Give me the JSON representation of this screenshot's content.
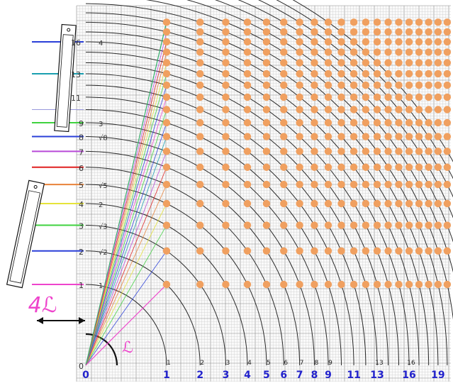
{
  "colors": {
    "grid_minor": "#c8c8c8",
    "grid_major": "#8a8a8a",
    "arc": "#2a2a2a",
    "dot": "#f0a060",
    "axis_label": "#2222cc",
    "magenta": "#ee44cc",
    "blue_line": "#2a3fd8",
    "red_line": "#e02020",
    "orange_line": "#e8833a",
    "yellow_line": "#e6e43a",
    "green_line": "#3fd23f",
    "violet_line": "#b84ad8",
    "teal_line": "#1a9fb0"
  },
  "bottom_axis": {
    "labels": [
      "0",
      "1",
      "2",
      "3",
      "4",
      "5",
      "6",
      "7",
      "8",
      "9",
      "11",
      "13",
      "16",
      "19"
    ],
    "values": [
      0,
      1,
      2,
      3,
      4,
      5,
      6,
      7,
      8,
      9,
      11,
      13,
      16,
      19
    ]
  },
  "top_small_labels": [
    {
      "text": "1",
      "value": 1
    },
    {
      "text": "2",
      "value": 2
    },
    {
      "text": "3",
      "value": 3
    },
    {
      "text": "4",
      "value": 4
    },
    {
      "text": "5",
      "value": 5
    },
    {
      "text": "6",
      "value": 6
    },
    {
      "text": "7",
      "value": 7
    },
    {
      "text": "8",
      "value": 8
    },
    {
      "text": "9",
      "value": 9
    },
    {
      "text": "13",
      "value": 13
    },
    {
      "text": "16",
      "value": 16
    }
  ],
  "left_axis": {
    "labels": [
      {
        "text": "0",
        "value": 0,
        "line": "none"
      },
      {
        "text": "1",
        "value": 1,
        "line": "magenta",
        "side": "1"
      },
      {
        "text": "2",
        "value": 2,
        "line": "blue_line",
        "side": "√2"
      },
      {
        "text": "3",
        "value": 3,
        "line": "green_line",
        "side": "√3"
      },
      {
        "text": "4",
        "value": 4,
        "line": "yellow_line",
        "side": "2"
      },
      {
        "text": "5",
        "value": 5,
        "line": "orange_line",
        "side": "√5"
      },
      {
        "text": "6",
        "value": 6,
        "line": "red_line",
        "side": ""
      },
      {
        "text": "7",
        "value": 7,
        "line": "violet_line",
        "side": ""
      },
      {
        "text": "8",
        "value": 8,
        "line": "blue_line",
        "side": "√8"
      },
      {
        "text": "9",
        "value": 9,
        "line": "green_line",
        "side": "3"
      },
      {
        "text": "11",
        "value": 11,
        "line": "none",
        "side": ""
      },
      {
        "text": "13",
        "value": 13,
        "line": "teal_line",
        "side": ""
      },
      {
        "text": "16",
        "value": 16,
        "line": "blue_line",
        "side": "4"
      }
    ]
  },
  "annotations": {
    "big_label": "4ℒ",
    "small_label": "ℒ"
  },
  "dot_rows": [
    1,
    2,
    3,
    4,
    5,
    6,
    7,
    8,
    9,
    10,
    11,
    12,
    13
  ],
  "dot_cols": [
    1,
    2,
    3,
    4,
    5,
    6,
    7,
    8,
    9,
    10,
    11,
    12,
    13,
    14,
    15,
    16,
    17,
    18,
    19,
    20,
    21,
    22,
    23,
    24,
    25,
    26,
    27,
    28
  ]
}
